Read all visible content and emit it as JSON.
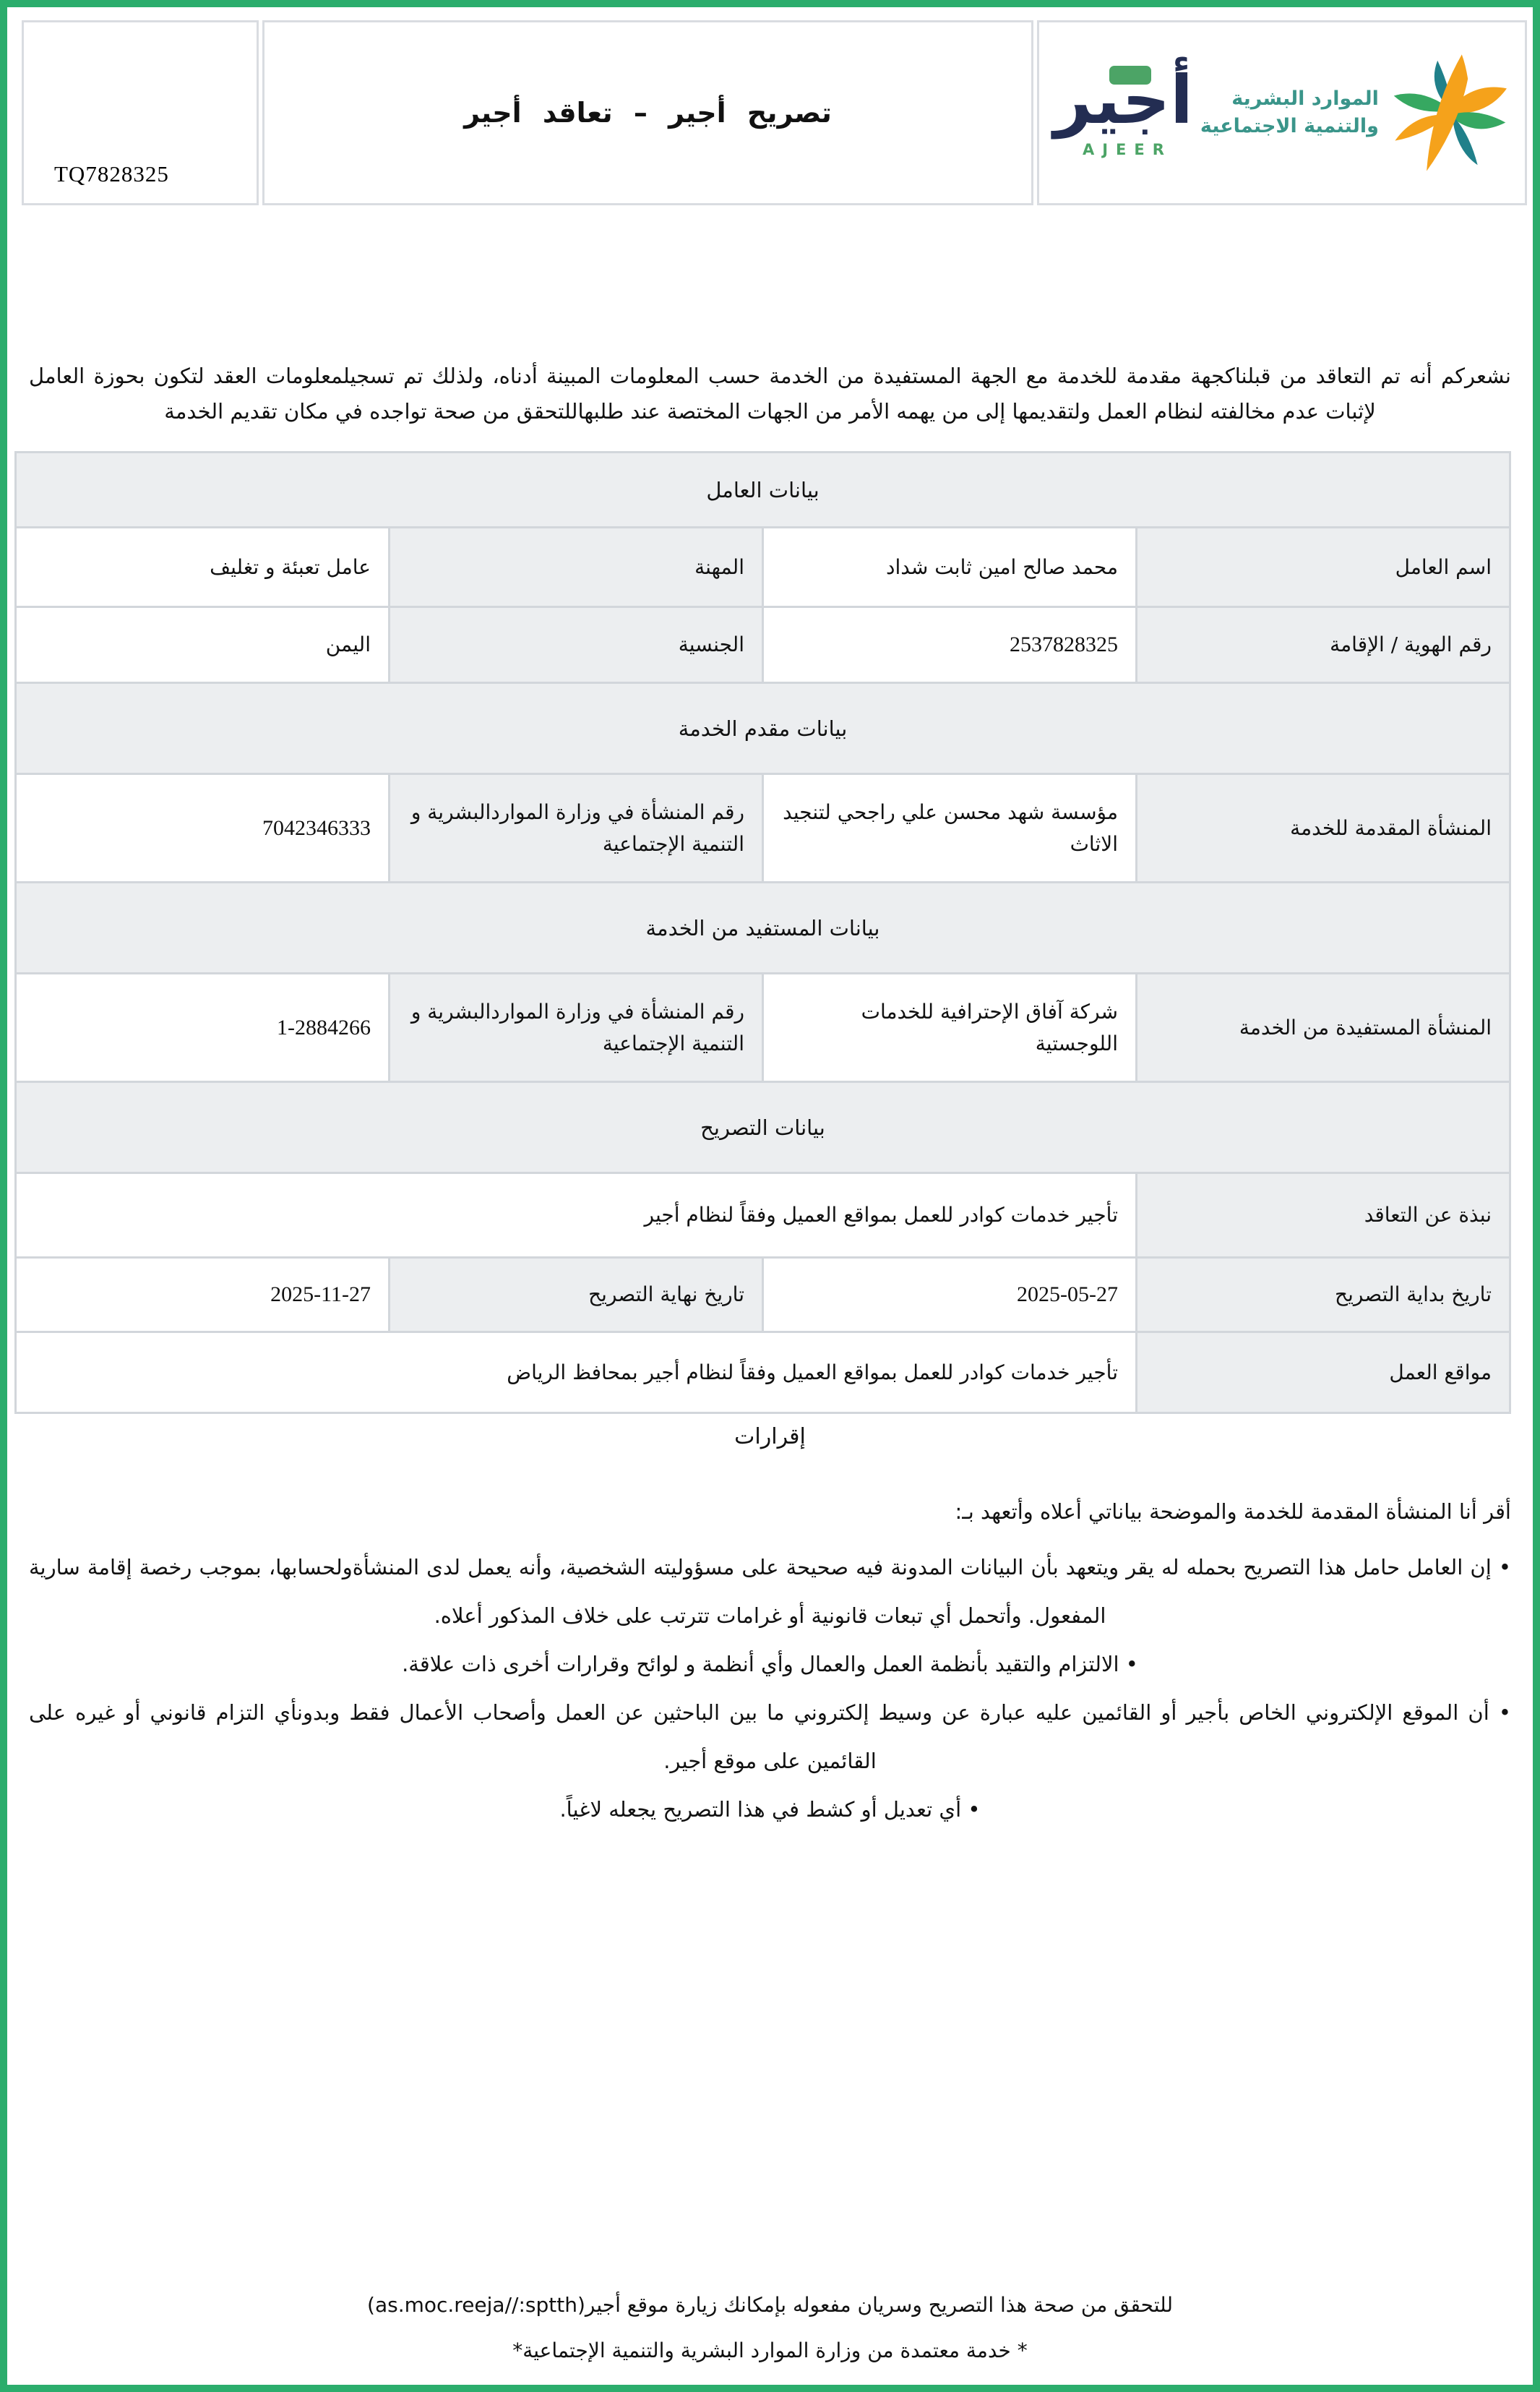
{
  "header": {
    "permit_number": "TQ7828325",
    "title": "تصريح أجير – تعاقد أجير"
  },
  "logos": {
    "ajeer_ar": "أجير",
    "ajeer_en": "AJEER",
    "ministry_line1": "الموارد البشرية",
    "ministry_line2": "والتنمية الاجتماعية"
  },
  "intro": "نشعركم أنه تم التعاقد من قبلناكجهة مقدمة للخدمة مع الجهة المستفيدة من الخدمة حسب المعلومات المبينة أدناه، ولذلك تم تسجيلمعلومات العقد لتكون بحوزة العامل لإثبات عدم مخالفته لنظام العمل ولتقديمها إلى من يهمه الأمر من الجهات المختصة عند طلبهاللتحقق من صحة تواجده في مكان تقديم الخدمة",
  "table": {
    "rows": [
      {
        "type": "section",
        "text": "بيانات العامل"
      },
      {
        "type": "row",
        "cells": [
          {
            "t": "label",
            "text": "اسم العامل"
          },
          {
            "t": "value",
            "text": "محمد صالح امين ثابت شداد"
          },
          {
            "t": "label",
            "text": "المهنة"
          },
          {
            "t": "value",
            "text": "عامل تعبئة و تغليف"
          }
        ]
      },
      {
        "type": "row",
        "cells": [
          {
            "t": "label",
            "text": "رقم الهوية / الإقامة"
          },
          {
            "t": "value",
            "text": "2537828325"
          },
          {
            "t": "label",
            "text": "الجنسية"
          },
          {
            "t": "value",
            "text": "اليمن"
          }
        ]
      },
      {
        "type": "section",
        "text": "بيانات مقدم الخدمة"
      },
      {
        "type": "row",
        "cells": [
          {
            "t": "label",
            "text": "المنشأة المقدمة للخدمة"
          },
          {
            "t": "value",
            "text": "مؤسسة شهد محسن علي راجحي لتنجيد الاثاث"
          },
          {
            "t": "label",
            "text": "رقم المنشأة في وزارة المواردالبشرية و التنمية الإجتماعية"
          },
          {
            "t": "value",
            "text": "7042346333"
          }
        ]
      },
      {
        "type": "section",
        "text": "بيانات المستفيد من الخدمة"
      },
      {
        "type": "row",
        "cells": [
          {
            "t": "label",
            "text": "المنشأة المستفيدة من الخدمة"
          },
          {
            "t": "value",
            "text": "شركة آفاق الإحترافية للخدمات اللوجستية"
          },
          {
            "t": "label",
            "text": "رقم المنشأة في وزارة المواردالبشرية و التنمية الإجتماعية"
          },
          {
            "t": "value",
            "text": "1-2884266"
          }
        ]
      },
      {
        "type": "section",
        "text": "بيانات التصريح"
      },
      {
        "type": "row",
        "cells": [
          {
            "t": "label",
            "text": "نبذة عن التعاقد"
          },
          {
            "t": "value",
            "text": "تأجير خدمات كوادر للعمل بمواقع العميل وفقاً لنظام أجير",
            "span": 3
          }
        ]
      },
      {
        "type": "row",
        "cells": [
          {
            "t": "label",
            "text": "تاريخ بداية التصريح"
          },
          {
            "t": "value",
            "text": "2025-05-27"
          },
          {
            "t": "label",
            "text": "تاريخ نهاية التصريح"
          },
          {
            "t": "value",
            "text": "2025-11-27"
          }
        ]
      },
      {
        "type": "row",
        "cells": [
          {
            "t": "label",
            "text": "مواقع العمل"
          },
          {
            "t": "value",
            "text": "تأجير خدمات كوادر للعمل بمواقع العميل وفقاً لنظام أجير بمحافظ الرياض",
            "span": 3
          }
        ]
      }
    ]
  },
  "declarations": {
    "heading": "إقرارات",
    "intro": "أقر أنا المنشأة المقدمة للخدمة والموضحة بياناتي أعلاه وأتعهد بـ:",
    "bullets": [
      "إن العامل حامل هذا التصريح بحمله له يقر ويتعهد بأن البيانات المدونة فيه صحيحة على مسؤوليته الشخصية، وأنه يعمل لدى المنشأةولحسابها، بموجب رخصة إقامة سارية المفعول. وأتحمل أي تبعات قانونية أو غرامات تترتب على خلاف المذكور أعلاه.",
      "الالتزام والتقيد بأنظمة العمل والعمال وأي أنظمة و لوائح وقرارات أخرى ذات علاقة.",
      "أن الموقع الإلكتروني الخاص بأجير أو القائمين عليه عبارة عن وسيط إلكتروني ما بين الباحثين عن العمل وأصحاب الأعمال فقط وبدونأي التزام قانوني أو غيره على القائمين على موقع أجير.",
      "أي تعديل أو كشط في هذا التصريح يجعله لاغياً."
    ]
  },
  "footer": {
    "line1": "للتحقق من صحة هذا التصريح وسريان مفعوله بإمكانك زيارة موقع أجير(as.moc.reeja//:sptth)",
    "line2": "* خدمة معتمدة من وزارة الموارد البشرية والتنمية الإجتماعية*"
  },
  "colors": {
    "page_border_green": "#2bad6c",
    "cell_gray": "#eceef0",
    "table_border": "#d2d6db",
    "ajeer_navy": "#232d52",
    "ajeer_green": "#4ca466",
    "ministry_teal": "#3a958a",
    "star_orange": "#f5a21b",
    "star_green": "#36a861",
    "star_teal": "#20808a"
  }
}
